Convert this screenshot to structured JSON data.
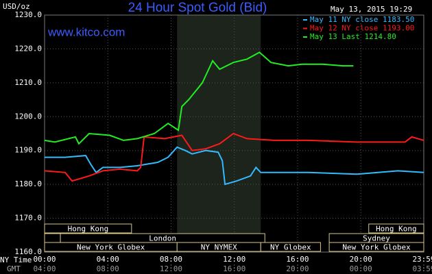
{
  "chart_data": {
    "type": "line",
    "title": "24 Hour Spot Gold (Bid)",
    "date_label": "May 13, 2015 19:29",
    "ylabel": "USD/oz",
    "site": "www.kitco.com",
    "x_label": "NY Time",
    "x2_label": "GMT",
    "xlim": [
      0,
      23.98
    ],
    "ylim": [
      1160,
      1230
    ],
    "grid": true,
    "background": "#000000",
    "yticks": [
      {
        "value": 1160,
        "label": "1160.0"
      },
      {
        "value": 1170,
        "label": "1170.0"
      },
      {
        "value": 1180,
        "label": "1180.0"
      },
      {
        "value": 1190,
        "label": "1190.0"
      },
      {
        "value": 1200,
        "label": "1200.0"
      },
      {
        "value": 1210,
        "label": "1210.0"
      },
      {
        "value": 1220,
        "label": "1220.0"
      },
      {
        "value": 1230,
        "label": "1230.0"
      }
    ],
    "xticks": [
      {
        "value": 0,
        "label": "00:00"
      },
      {
        "value": 4,
        "label": "04:00"
      },
      {
        "value": 8,
        "label": "08:00"
      },
      {
        "value": 12,
        "label": "12:00"
      },
      {
        "value": 16,
        "label": "16:00"
      },
      {
        "value": 20,
        "label": "20:00"
      },
      {
        "value": 23.98,
        "label": "23:59"
      }
    ],
    "x2ticks": [
      {
        "value": 0,
        "label": "04:00"
      },
      {
        "value": 4,
        "label": "08:00"
      },
      {
        "value": 8,
        "label": "12:00"
      },
      {
        "value": 12,
        "label": "16:00"
      },
      {
        "value": 16,
        "label": "20:00"
      },
      {
        "value": 20,
        "label": "00:00"
      },
      {
        "value": 23.98,
        "label": "03:59"
      }
    ],
    "shaded_range": [
      8.38,
      13.67
    ],
    "sessions": [
      {
        "name": "Hong Kong",
        "start": 0,
        "end": 5.5,
        "row": 0
      },
      {
        "name": "Hong Kong",
        "start": 20.5,
        "end": 23.98,
        "row": 0
      },
      {
        "name": null,
        "start": 0,
        "end": 1,
        "row": 1
      },
      {
        "name": "London",
        "start": 1,
        "end": 13.93,
        "row": 1
      },
      {
        "name": "Sydney",
        "start": 18,
        "end": 23.98,
        "row": 1
      },
      {
        "name": "New York Globex",
        "start": 0,
        "end": 8.38,
        "row": 2
      },
      {
        "name": "NY NYMEX",
        "start": 8.38,
        "end": 13.67,
        "row": 2
      },
      {
        "name": "NY Globex",
        "start": 13.67,
        "end": 17.45,
        "row": 2
      },
      {
        "name": "New York Globex",
        "start": 18,
        "end": 23.98,
        "row": 2
      }
    ],
    "series": [
      {
        "name": "May 11 NY close 1183.50",
        "color": "#33bbff",
        "x": [
          0,
          1.3,
          2.6,
          2.91,
          3.26,
          3.69,
          4.77,
          5.86,
          7.16,
          7.81,
          8.38,
          8.9,
          9.33,
          10.2,
          10.98,
          11.24,
          11.41,
          12.15,
          13.02,
          13.37,
          13.67,
          16.71,
          19.75,
          22.35,
          23.98
        ],
        "values": [
          1188,
          1188,
          1188.5,
          1186,
          1183.5,
          1185,
          1185,
          1185.5,
          1186.5,
          1188,
          1191,
          1190,
          1189,
          1190,
          1189.5,
          1187,
          1180,
          1181,
          1182.5,
          1185,
          1183.5,
          1183.5,
          1183,
          1184,
          1183.5
        ]
      },
      {
        "name": "May 12 NY close 1193.00",
        "color": "#ff1a1a",
        "x": [
          0,
          1.3,
          1.74,
          2.82,
          3.69,
          4.77,
          5.86,
          6.08,
          6.29,
          7.6,
          8.68,
          9.33,
          10.2,
          11.07,
          11.94,
          12.8,
          14.54,
          16.71,
          19.75,
          21.48,
          22.79,
          23.22,
          23.98
        ],
        "values": [
          1184,
          1183.5,
          1181,
          1182.5,
          1184,
          1184.5,
          1184,
          1185,
          1194,
          1193.5,
          1194.5,
          1190,
          1190.5,
          1192,
          1195,
          1193.5,
          1193,
          1193,
          1192.5,
          1192.5,
          1192.5,
          1194,
          1193
        ]
      },
      {
        "name": "May 13 Last 1214.80",
        "color": "#22ee22",
        "x": [
          0,
          0.65,
          1.95,
          2.17,
          2.82,
          4.12,
          4.99,
          5.86,
          6.94,
          7.81,
          8.46,
          8.68,
          9.11,
          9.98,
          10.63,
          11.07,
          11.94,
          12.8,
          13.59,
          14.32,
          15.41,
          16.28,
          17.58,
          18.88,
          19.53
        ],
        "values": [
          1193,
          1192.5,
          1194,
          1192,
          1195,
          1194.5,
          1193,
          1193.5,
          1195,
          1198,
          1196,
          1203,
          1205,
          1210,
          1216.5,
          1214,
          1216,
          1217,
          1219,
          1216,
          1215,
          1215.5,
          1215.5,
          1215,
          1215
        ]
      }
    ]
  }
}
